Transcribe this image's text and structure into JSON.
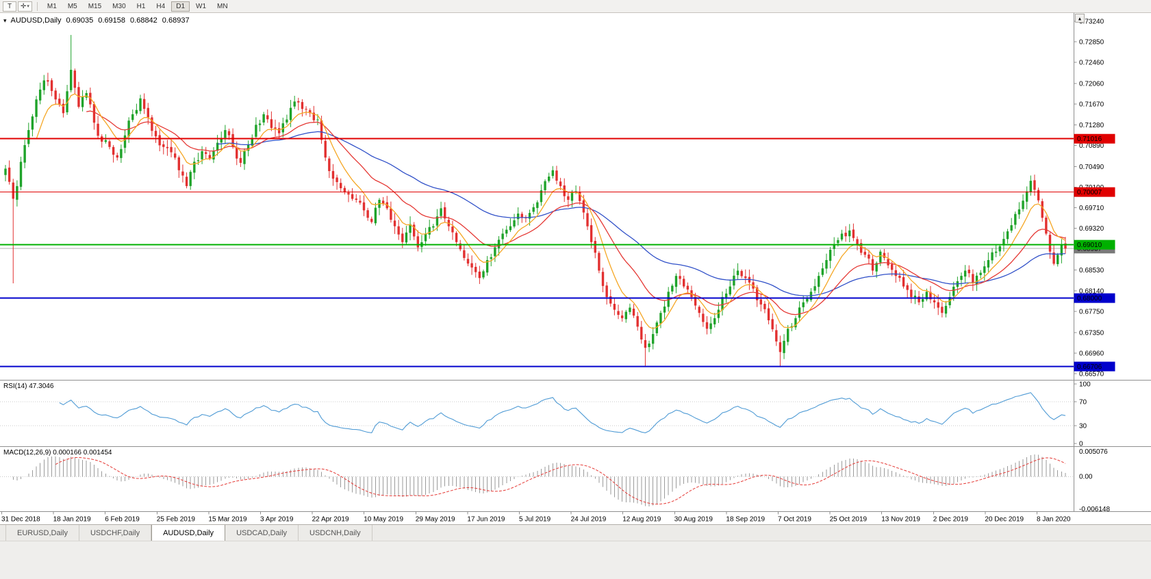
{
  "toolbar": {
    "tool_buttons": [
      {
        "name": "text-tool",
        "glyph": "T"
      },
      {
        "name": "drawing-tools",
        "glyph": "✛",
        "dropdown_glyph": "▾"
      }
    ],
    "timeframes": [
      "M1",
      "M5",
      "M15",
      "M30",
      "H1",
      "H4",
      "D1",
      "W1",
      "MN"
    ],
    "active_timeframe": "D1"
  },
  "icons": {
    "collapse_triangle": "▾",
    "scroll_up": "▲"
  },
  "chart": {
    "title": {
      "symbol": "AUDUSD,Daily",
      "open": "0.69035",
      "high": "0.69158",
      "low": "0.68842",
      "close": "0.68937"
    },
    "price_scale": {
      "max_price": 0.7324,
      "min_price": 0.6657,
      "labels": [
        "0.73240",
        "0.72850",
        "0.72460",
        "0.72060",
        "0.71670",
        "0.71280",
        "0.70890",
        "0.70490",
        "0.70100",
        "0.69710",
        "0.69320",
        "0.68930",
        "0.68530",
        "0.68140",
        "0.67750",
        "0.67350",
        "0.66960",
        "0.66570"
      ]
    },
    "levels": [
      {
        "price": 0.71016,
        "label": "0.71016",
        "color": "#e00000",
        "width": 2
      },
      {
        "price": 0.70007,
        "label": "0.70007",
        "color": "#e00000",
        "width": 1
      },
      {
        "price": 0.6901,
        "label": "0.69010",
        "color": "#00b000",
        "width": 2
      },
      {
        "price": 0.68,
        "label": "0.68000",
        "color": "#0000cc",
        "width": 2
      },
      {
        "price": 0.66706,
        "label": "0.66706",
        "color": "#0000cc",
        "width": 2
      }
    ],
    "current_price": {
      "price": 0.68937,
      "label": "0.68937",
      "line_color": "#b0b0b0",
      "tag_color": "#7a7a7a"
    },
    "date_labels": [
      "31 Dec 2018",
      "18 Jan 2019",
      "6 Feb 2019",
      "25 Feb 2019",
      "15 Mar 2019",
      "3 Apr 2019",
      "22 Apr 2019",
      "10 May 2019",
      "29 May 2019",
      "17 Jun 2019",
      "5 Jul 2019",
      "24 Jul 2019",
      "12 Aug 2019",
      "30 Aug 2019",
      "18 Sep 2019",
      "7 Oct 2019",
      "25 Oct 2019",
      "13 Nov 2019",
      "2 Dec 2019",
      "20 Dec 2019",
      "8 Jan 2020"
    ]
  },
  "chart_data": {
    "type": "candlestick",
    "symbol": "AUDUSD",
    "timeframe": "Daily",
    "candles_count": 276,
    "price_range": [
      0.6657,
      0.7324
    ],
    "last_candle": {
      "open": 0.69035,
      "high": 0.69158,
      "low": 0.68842,
      "close": 0.68937
    },
    "up_color": "#1fa32a",
    "down_color": "#e23030",
    "close_anchors": [
      [
        0,
        0.7045
      ],
      [
        1,
        0.702
      ],
      [
        2,
        0.6988
      ],
      [
        3,
        0.7012
      ],
      [
        4,
        0.7058
      ],
      [
        6,
        0.7118
      ],
      [
        8,
        0.7176
      ],
      [
        10,
        0.7212
      ],
      [
        12,
        0.7192
      ],
      [
        13,
        0.7176
      ],
      [
        15,
        0.715
      ],
      [
        17,
        0.7232
      ],
      [
        18,
        0.7198
      ],
      [
        19,
        0.7162
      ],
      [
        21,
        0.7188
      ],
      [
        23,
        0.7132
      ],
      [
        25,
        0.7096
      ],
      [
        27,
        0.7086
      ],
      [
        29,
        0.7066
      ],
      [
        31,
        0.7108
      ],
      [
        33,
        0.7148
      ],
      [
        35,
        0.7178
      ],
      [
        37,
        0.7142
      ],
      [
        39,
        0.7106
      ],
      [
        41,
        0.7086
      ],
      [
        43,
        0.7076
      ],
      [
        45,
        0.7042
      ],
      [
        47,
        0.7012
      ],
      [
        49,
        0.7058
      ],
      [
        51,
        0.7078
      ],
      [
        53,
        0.7064
      ],
      [
        55,
        0.7094
      ],
      [
        57,
        0.7118
      ],
      [
        59,
        0.7086
      ],
      [
        61,
        0.7056
      ],
      [
        63,
        0.709
      ],
      [
        65,
        0.7128
      ],
      [
        67,
        0.7148
      ],
      [
        69,
        0.7122
      ],
      [
        71,
        0.7112
      ],
      [
        73,
        0.7138
      ],
      [
        75,
        0.7172
      ],
      [
        77,
        0.7158
      ],
      [
        79,
        0.715
      ],
      [
        81,
        0.7138
      ],
      [
        83,
        0.7066
      ],
      [
        85,
        0.7026
      ],
      [
        87,
        0.7008
      ],
      [
        89,
        0.6996
      ],
      [
        91,
        0.6986
      ],
      [
        93,
        0.6966
      ],
      [
        95,
        0.6944
      ],
      [
        97,
        0.6986
      ],
      [
        99,
        0.697
      ],
      [
        101,
        0.6936
      ],
      [
        103,
        0.6906
      ],
      [
        105,
        0.694
      ],
      [
        107,
        0.6896
      ],
      [
        109,
        0.6922
      ],
      [
        111,
        0.6936
      ],
      [
        113,
        0.697
      ],
      [
        115,
        0.6936
      ],
      [
        117,
        0.6906
      ],
      [
        119,
        0.6876
      ],
      [
        121,
        0.6858
      ],
      [
        123,
        0.6838
      ],
      [
        125,
        0.6872
      ],
      [
        127,
        0.6896
      ],
      [
        129,
        0.6922
      ],
      [
        131,
        0.6936
      ],
      [
        133,
        0.696
      ],
      [
        135,
        0.6952
      ],
      [
        137,
        0.6972
      ],
      [
        139,
        0.7004
      ],
      [
        141,
        0.703
      ],
      [
        142,
        0.7042
      ],
      [
        144,
        0.7012
      ],
      [
        146,
        0.6986
      ],
      [
        148,
        0.7002
      ],
      [
        150,
        0.6962
      ],
      [
        152,
        0.6906
      ],
      [
        154,
        0.6852
      ],
      [
        156,
        0.6802
      ],
      [
        158,
        0.6778
      ],
      [
        160,
        0.6762
      ],
      [
        162,
        0.6782
      ],
      [
        164,
        0.6746
      ],
      [
        166,
        0.6706
      ],
      [
        168,
        0.6732
      ],
      [
        170,
        0.6772
      ],
      [
        172,
        0.6812
      ],
      [
        174,
        0.6842
      ],
      [
        176,
        0.6822
      ],
      [
        178,
        0.6802
      ],
      [
        180,
        0.6772
      ],
      [
        182,
        0.6742
      ],
      [
        184,
        0.6762
      ],
      [
        186,
        0.6802
      ],
      [
        188,
        0.6822
      ],
      [
        190,
        0.6852
      ],
      [
        192,
        0.6838
      ],
      [
        194,
        0.6818
      ],
      [
        196,
        0.6788
      ],
      [
        198,
        0.6758
      ],
      [
        200,
        0.6718
      ],
      [
        201,
        0.6698
      ],
      [
        203,
        0.6742
      ],
      [
        205,
        0.6762
      ],
      [
        207,
        0.6792
      ],
      [
        209,
        0.6812
      ],
      [
        211,
        0.6842
      ],
      [
        213,
        0.6872
      ],
      [
        215,
        0.6902
      ],
      [
        217,
        0.6922
      ],
      [
        219,
        0.6928
      ],
      [
        221,
        0.6902
      ],
      [
        223,
        0.6882
      ],
      [
        225,
        0.6852
      ],
      [
        227,
        0.6888
      ],
      [
        229,
        0.6862
      ],
      [
        231,
        0.6842
      ],
      [
        233,
        0.6822
      ],
      [
        235,
        0.6802
      ],
      [
        237,
        0.6792
      ],
      [
        239,
        0.6812
      ],
      [
        241,
        0.6792
      ],
      [
        243,
        0.6772
      ],
      [
        245,
        0.6802
      ],
      [
        247,
        0.6832
      ],
      [
        249,
        0.6852
      ],
      [
        251,
        0.6828
      ],
      [
        253,
        0.6848
      ],
      [
        255,
        0.6872
      ],
      [
        257,
        0.6888
      ],
      [
        259,
        0.6912
      ],
      [
        261,
        0.6938
      ],
      [
        263,
        0.6968
      ],
      [
        265,
        0.7002
      ],
      [
        266,
        0.7022
      ],
      [
        267,
        0.7005
      ],
      [
        268,
        0.6985
      ],
      [
        269,
        0.6952
      ],
      [
        270,
        0.6922
      ],
      [
        271,
        0.6888
      ],
      [
        272,
        0.6865
      ],
      [
        273,
        0.6882
      ],
      [
        274,
        0.69
      ],
      [
        275,
        0.68937
      ]
    ],
    "wick_overrides": [
      {
        "i": 2,
        "low": 0.6828
      },
      {
        "i": 17,
        "high": 0.7298
      },
      {
        "i": 166,
        "low": 0.6672
      },
      {
        "i": 201,
        "low": 0.6671
      },
      {
        "i": 266,
        "high": 0.7032
      }
    ],
    "moving_averages": [
      {
        "period": 8,
        "color": "#f5a623",
        "name": "fast-ma-orange"
      },
      {
        "period": 21,
        "color": "#e53935",
        "name": "medium-ma-red"
      },
      {
        "period": 55,
        "color": "#3050c8",
        "name": "slow-ma-blue"
      }
    ],
    "horizontal_levels": [
      0.71016,
      0.70007,
      0.6901,
      0.68,
      0.66706
    ]
  },
  "rsi": {
    "label": "RSI(14) 47.3046",
    "period": 14,
    "current": 47.3046,
    "scale_labels": [
      "100",
      "70",
      "30",
      "0"
    ],
    "levels": [
      70,
      30
    ],
    "line_color": "#4f9bd5"
  },
  "macd": {
    "label": "MACD(12,26,9) 0.000166 0.001454",
    "fast": 12,
    "slow": 26,
    "signal": 9,
    "values": [
      0.000166,
      0.001454
    ],
    "scale_top": "0.005076",
    "scale_zero": "0.00",
    "scale_bottom": "-0.006148",
    "histogram_color": "#9a9a9a",
    "signal_color": "#e53935"
  },
  "tabs": {
    "items": [
      {
        "label": "EURUSD,Daily",
        "active": false
      },
      {
        "label": "USDCHF,Daily",
        "active": false
      },
      {
        "label": "AUDUSD,Daily",
        "active": true
      },
      {
        "label": "USDCAD,Daily",
        "active": false
      },
      {
        "label": "USDCNH,Daily",
        "active": false
      }
    ]
  }
}
